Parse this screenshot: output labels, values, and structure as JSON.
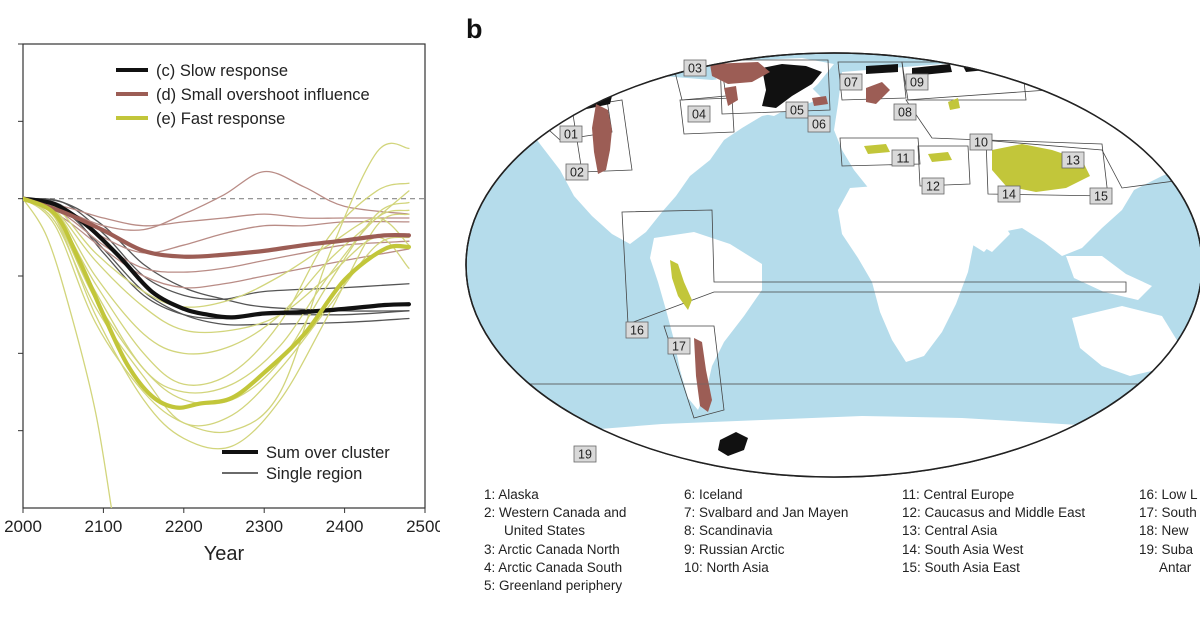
{
  "chart_data": {
    "type": "line",
    "title": "",
    "xlabel": "Year",
    "ylabel": "",
    "xlim": [
      2000,
      2500
    ],
    "x_ticks": [
      2000,
      2100,
      2200,
      2300,
      2400,
      2500
    ],
    "x_tick_labels": [
      "2000",
      "2100",
      "2200",
      "2300",
      "2400",
      "2500"
    ],
    "y_tick_labels": [
      "",
      "",
      "",
      "",
      "",
      "",
      ""
    ],
    "legend_top": [
      {
        "name": "(c) Slow response",
        "color": "#111111"
      },
      {
        "name": "(d) Small overshoot influence",
        "color": "#9c5d55"
      },
      {
        "name": "(e) Fast response",
        "color": "#c2c63a"
      }
    ],
    "legend_bottom": [
      {
        "name": "Sum over cluster",
        "style": "thick"
      },
      {
        "name": "Single region",
        "style": "thin"
      }
    ],
    "series": [
      {
        "cluster": "slow",
        "kind": "sum",
        "color": "#111111",
        "x": [
          2000,
          2040,
          2080,
          2120,
          2160,
          2200,
          2230,
          2260,
          2300,
          2350,
          2400,
          2450,
          2480
        ],
        "y": [
          100,
          98.5,
          93,
          85,
          76,
          71.5,
          70,
          69.3,
          70.3,
          70.7,
          71.5,
          72.5,
          72.7
        ]
      },
      {
        "cluster": "slow",
        "kind": "region",
        "color": "#555555",
        "x": [
          2000,
          2050,
          2100,
          2150,
          2200,
          2250,
          2300,
          2400,
          2480
        ],
        "y": [
          100,
          99,
          91,
          80,
          75,
          74,
          76,
          77,
          78
        ]
      },
      {
        "cluster": "slow",
        "kind": "region",
        "color": "#555555",
        "x": [
          2000,
          2050,
          2100,
          2150,
          2200,
          2250,
          2300,
          2400,
          2480
        ],
        "y": [
          100,
          98,
          86,
          75,
          70,
          69,
          70,
          70,
          71
        ]
      },
      {
        "cluster": "slow",
        "kind": "region",
        "color": "#555555",
        "x": [
          2000,
          2050,
          2100,
          2150,
          2200,
          2250,
          2300,
          2400,
          2480
        ],
        "y": [
          100,
          97,
          87,
          76,
          70,
          67.5,
          67.5,
          68,
          69
        ]
      },
      {
        "cluster": "slow",
        "kind": "region",
        "color": "#555555",
        "x": [
          2000,
          2050,
          2100,
          2150,
          2200,
          2250,
          2300,
          2400,
          2480
        ],
        "y": [
          100,
          99,
          93,
          83,
          77,
          74,
          72,
          71,
          71
        ]
      },
      {
        "cluster": "small_overshoot",
        "kind": "sum",
        "color": "#9c5d55",
        "x": [
          2000,
          2050,
          2100,
          2150,
          2200,
          2250,
          2300,
          2350,
          2400,
          2450,
          2480
        ],
        "y": [
          100,
          96.5,
          91.8,
          86.5,
          85,
          85.5,
          86.5,
          88,
          89.2,
          90.5,
          90.5
        ]
      },
      {
        "cluster": "small_overshoot",
        "kind": "region",
        "color": "#b98c86",
        "x": [
          2000,
          2050,
          2100,
          2150,
          2200,
          2250,
          2300,
          2350,
          2400,
          2480
        ],
        "y": [
          100,
          97,
          93,
          92,
          96,
          101,
          107,
          103,
          98,
          96
        ]
      },
      {
        "cluster": "small_overshoot",
        "kind": "region",
        "color": "#b98c86",
        "x": [
          2000,
          2050,
          2100,
          2150,
          2200,
          2250,
          2300,
          2350,
          2400,
          2480
        ],
        "y": [
          100,
          98,
          95,
          93,
          94,
          95,
          96,
          95,
          95,
          95
        ]
      },
      {
        "cluster": "small_overshoot",
        "kind": "region",
        "color": "#b98c86",
        "x": [
          2000,
          2050,
          2100,
          2150,
          2200,
          2250,
          2300,
          2350,
          2400,
          2480
        ],
        "y": [
          100,
          97,
          90,
          86,
          88,
          91,
          93,
          93,
          94,
          94
        ]
      },
      {
        "cluster": "small_overshoot",
        "kind": "region",
        "color": "#b98c86",
        "x": [
          2000,
          2050,
          2100,
          2150,
          2200,
          2250,
          2300,
          2350,
          2400,
          2480
        ],
        "y": [
          100,
          96,
          88,
          82,
          81,
          82,
          84,
          86,
          88,
          89
        ]
      },
      {
        "cluster": "small_overshoot",
        "kind": "region",
        "color": "#b98c86",
        "x": [
          2000,
          2050,
          2100,
          2150,
          2200,
          2250,
          2300,
          2350,
          2400,
          2480
        ],
        "y": [
          100,
          95,
          87,
          80,
          77,
          78,
          80,
          82,
          84,
          87
        ]
      },
      {
        "cluster": "fast",
        "kind": "sum",
        "color": "#c2c63a",
        "x": [
          2000,
          2040,
          2070,
          2100,
          2130,
          2160,
          2190,
          2220,
          2260,
          2300,
          2350,
          2400,
          2450,
          2480
        ],
        "y": [
          100,
          96,
          84,
          70,
          57,
          49,
          46,
          47,
          48.5,
          55,
          65,
          79,
          87,
          87.5
        ]
      },
      {
        "cluster": "fast",
        "kind": "region",
        "color": "#d2d57c",
        "x": [
          2000,
          2030,
          2060,
          2090,
          2110
        ],
        "y": [
          100,
          90,
          70,
          45,
          20
        ]
      },
      {
        "cluster": "fast",
        "kind": "region",
        "color": "#d2d57c",
        "x": [
          2000,
          2040,
          2090,
          2150,
          2200,
          2260,
          2320,
          2380,
          2440,
          2480
        ],
        "y": [
          100,
          95,
          70,
          48,
          38,
          36,
          48,
          70,
          93,
          96
        ]
      },
      {
        "cluster": "fast",
        "kind": "region",
        "color": "#d2d57c",
        "x": [
          2000,
          2040,
          2090,
          2150,
          2200,
          2260,
          2320,
          2380,
          2440,
          2480
        ],
        "y": [
          100,
          93,
          68,
          50,
          42,
          40,
          50,
          85,
          112,
          113
        ]
      },
      {
        "cluster": "fast",
        "kind": "region",
        "color": "#d2d57c",
        "x": [
          2000,
          2040,
          2090,
          2150,
          2200,
          2260,
          2320,
          2380,
          2440,
          2480
        ],
        "y": [
          100,
          96,
          76,
          56,
          50,
          52,
          62,
          80,
          95,
          97
        ]
      },
      {
        "cluster": "fast",
        "kind": "region",
        "color": "#d2d57c",
        "x": [
          2000,
          2040,
          2090,
          2150,
          2200,
          2260,
          2320,
          2380,
          2440,
          2480
        ],
        "y": [
          100,
          97,
          80,
          65,
          60,
          62,
          70,
          84,
          95,
          102
        ]
      },
      {
        "cluster": "fast",
        "kind": "region",
        "color": "#d2d57c",
        "x": [
          2000,
          2040,
          2090,
          2150,
          2200,
          2260,
          2320,
          2380,
          2440,
          2480
        ],
        "y": [
          100,
          98,
          86,
          76,
          72,
          74,
          80,
          88,
          95,
          88
        ]
      },
      {
        "cluster": "fast",
        "kind": "region",
        "color": "#d2d57c",
        "x": [
          2000,
          2040,
          2090,
          2150,
          2200,
          2260,
          2320,
          2380,
          2440,
          2480
        ],
        "y": [
          100,
          97,
          84,
          72,
          66,
          66,
          70,
          80,
          90,
          82
        ]
      },
      {
        "cluster": "fast",
        "kind": "region",
        "color": "#d2d57c",
        "x": [
          2000,
          2040,
          2090,
          2150,
          2200,
          2260,
          2320,
          2380,
          2440,
          2480
        ],
        "y": [
          100,
          95,
          74,
          56,
          48,
          48,
          58,
          78,
          96,
          99
        ]
      },
      {
        "cluster": "fast",
        "kind": "region",
        "color": "#d2d57c",
        "x": [
          2000,
          2040,
          2090,
          2150,
          2200,
          2260,
          2320,
          2380,
          2440,
          2480
        ],
        "y": [
          100,
          96,
          78,
          60,
          52,
          55,
          68,
          90,
          102,
          104
        ]
      },
      {
        "cluster": "fast",
        "kind": "region",
        "color": "#d2d57c",
        "x": [
          2000,
          2040,
          2090,
          2150,
          2200,
          2260,
          2320,
          2380,
          2440,
          2480
        ],
        "y": [
          100,
          94,
          72,
          54,
          42,
          44,
          56,
          72,
          88,
          90
        ]
      }
    ]
  },
  "map": {
    "panel_label": "b",
    "ocean_color": "#b5dceb",
    "land_color": "#ffffff",
    "glacier_colors": {
      "slow": "#111111",
      "small_overshoot": "#9c5d55",
      "fast": "#c2c63a"
    },
    "region_tags": [
      "01",
      "02",
      "03",
      "04",
      "05",
      "06",
      "07",
      "08",
      "09",
      "10",
      "11",
      "12",
      "13",
      "14",
      "15",
      "16",
      "17",
      "19"
    ]
  },
  "regions": [
    "1: Alaska",
    "2: Western Canada and",
    "United States",
    "3: Arctic Canada North",
    "4: Arctic Canada South",
    "5: Greenland periphery",
    "6: Iceland",
    "7: Svalbard and Jan Mayen",
    "8: Scandinavia",
    "9: Russian Arctic",
    "10: North Asia",
    "11: Central Europe",
    "12: Caucasus and Middle East",
    "13: Central Asia",
    "14: South Asia West",
    "15: South Asia East",
    "16: Low L",
    "17: South",
    "18: New",
    "19: Suba",
    "Antar"
  ]
}
